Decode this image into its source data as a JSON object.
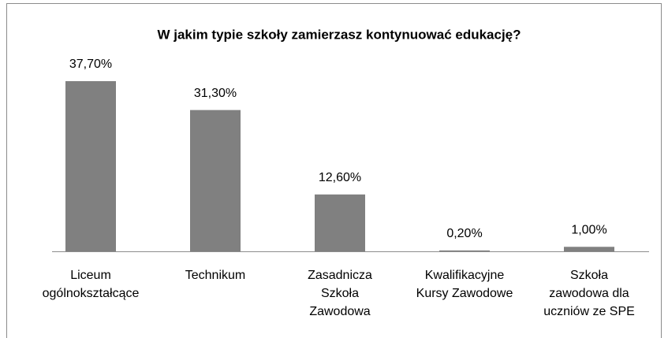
{
  "chart_data": {
    "type": "bar",
    "title": "W jakim typie szkoły zamierzasz kontynuować edukację?",
    "categories": [
      [
        "Liceum",
        "ogólnokształcące"
      ],
      [
        "Technikum"
      ],
      [
        "Zasadnicza",
        "Szkoła",
        "Zawodowa"
      ],
      [
        "Kwalifikacyjne",
        "Kursy Zawodowe"
      ],
      [
        "Szkoła",
        "zawodowa dla",
        "uczniów ze SPE"
      ]
    ],
    "values": [
      37.7,
      31.3,
      12.6,
      0.2,
      1.0
    ],
    "value_labels": [
      "37,70%",
      "31,30%",
      "12,60%",
      "0,20%",
      "1,00%"
    ],
    "color": "#808080"
  }
}
